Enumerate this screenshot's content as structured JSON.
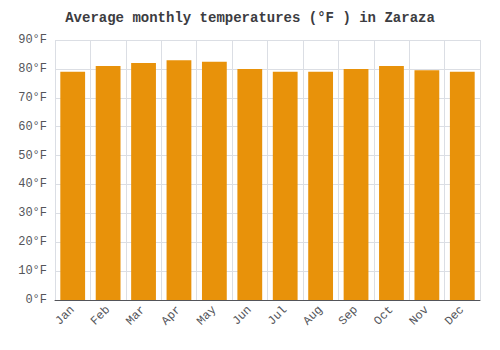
{
  "chart_data": {
    "type": "bar",
    "title": "Average monthly temperatures (°F ) in Zaraza",
    "categories": [
      "Jan",
      "Feb",
      "Mar",
      "Apr",
      "May",
      "Jun",
      "Jul",
      "Aug",
      "Sep",
      "Oct",
      "Nov",
      "Dec"
    ],
    "values": [
      79,
      81,
      82,
      83,
      82.5,
      80,
      79,
      79,
      80,
      81,
      79.5,
      79
    ],
    "color": "#E8920A",
    "ylim": [
      0,
      90
    ],
    "yticks": [
      {
        "value": 0,
        "label": "0°F"
      },
      {
        "value": 10,
        "label": "10°F"
      },
      {
        "value": 20,
        "label": "20°F"
      },
      {
        "value": 30,
        "label": "30°F"
      },
      {
        "value": 40,
        "label": "40°F"
      },
      {
        "value": 50,
        "label": "50°F"
      },
      {
        "value": 60,
        "label": "60°F"
      },
      {
        "value": 70,
        "label": "70°F"
      },
      {
        "value": 80,
        "label": "80°F"
      },
      {
        "value": 90,
        "label": "90°F"
      }
    ],
    "grid": true
  }
}
